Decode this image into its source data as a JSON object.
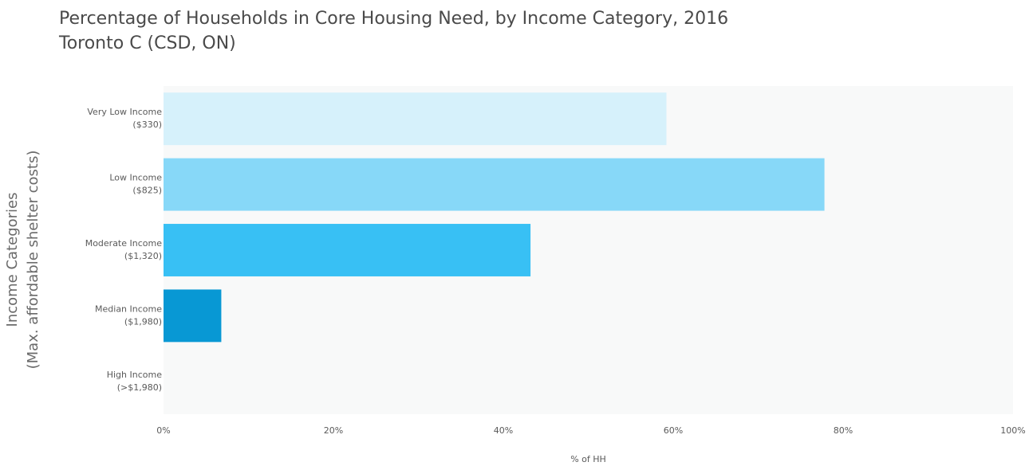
{
  "chart_data": {
    "type": "bar",
    "orientation": "horizontal",
    "title": "Percentage of Households in Core Housing Need, by Income Category, 2016",
    "subtitle": "Toronto C (CSD, ON)",
    "xlabel": "% of HH",
    "ylabel": [
      "Income Categories",
      "(Max. affordable shelter costs)"
    ],
    "xlim": [
      0,
      100
    ],
    "xticks": [
      "0%",
      "20%",
      "40%",
      "60%",
      "80%",
      "100%"
    ],
    "grid": false,
    "categories": [
      {
        "name": "Very Low Income",
        "cost": "($330)",
        "value": 59.2,
        "color": "#d6f1fb"
      },
      {
        "name": "Low Income",
        "cost": "($825)",
        "value": 77.8,
        "color": "#87d8f8"
      },
      {
        "name": "Moderate Income",
        "cost": "($1,320)",
        "value": 43.2,
        "color": "#38c0f4"
      },
      {
        "name": "Median Income",
        "cost": "($1,980)",
        "value": 6.8,
        "color": "#0898d4"
      },
      {
        "name": "High Income",
        "cost": "(>$1,980)",
        "value": 0,
        "color": "#05578a"
      }
    ],
    "plot_background": "#f8f9f9"
  }
}
